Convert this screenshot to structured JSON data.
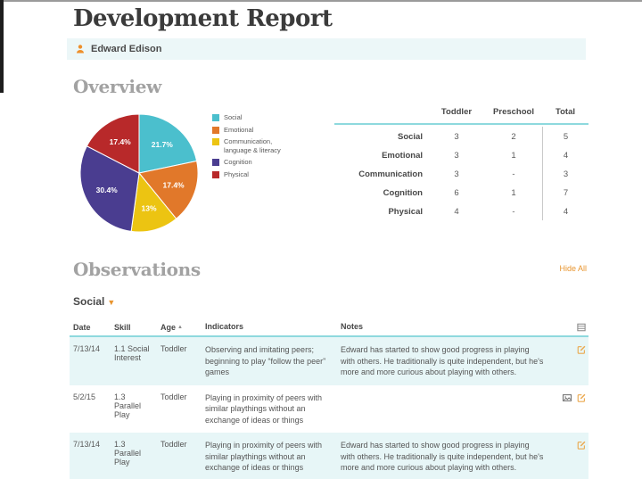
{
  "page": {
    "title": "Development Report"
  },
  "student": {
    "name": "Edward Edison"
  },
  "chart_data": {
    "type": "pie",
    "categories": [
      "Social",
      "Emotional",
      "Communication, language & literacy",
      "Cognition",
      "Physical"
    ],
    "values": [
      21.7,
      17.4,
      13,
      30.4,
      17.4
    ],
    "labels": [
      "21.7%",
      "17.4%",
      "13%",
      "30.4%",
      "17.4%"
    ],
    "colors": [
      "#4bbfcd",
      "#e1782a",
      "#ecc412",
      "#4a3d90",
      "#b8292a"
    ],
    "title": "",
    "legend_position": "right"
  },
  "overview": {
    "heading": "Overview",
    "table": {
      "col_toddler": "Toddler",
      "col_preschool": "Preschool",
      "col_total": "Total",
      "rows": [
        {
          "label": "Social",
          "toddler": "3",
          "preschool": "2",
          "total": "5"
        },
        {
          "label": "Emotional",
          "toddler": "3",
          "preschool": "1",
          "total": "4"
        },
        {
          "label": "Communication",
          "toddler": "3",
          "preschool": "-",
          "total": "3"
        },
        {
          "label": "Cognition",
          "toddler": "6",
          "preschool": "1",
          "total": "7"
        },
        {
          "label": "Physical",
          "toddler": "4",
          "preschool": "-",
          "total": "4"
        }
      ]
    }
  },
  "observations": {
    "heading": "Observations",
    "hide_all": "Hide All",
    "group": "Social",
    "headers": {
      "date": "Date",
      "skill": "Skill",
      "age": "Age",
      "indicators": "Indicators",
      "notes": "Notes"
    },
    "rows": [
      {
        "date": "7/13/14",
        "skill": "1.1 Social Interest",
        "age": "Toddler",
        "indicators": "Observing and imitating peers; beginning to play “follow the peer” games",
        "notes": "Edward has started to show good progress in playing with others. He traditionally is quite independent, but he's more and more curious about playing with others."
      },
      {
        "date": "5/2/15",
        "skill": "1.3 Parallel Play",
        "age": "Toddler",
        "indicators": "Playing in proximity of peers with similar playthings without an exchange of ideas or things",
        "notes": ""
      },
      {
        "date": "7/13/14",
        "skill": "1.3 Parallel Play",
        "age": "Toddler",
        "indicators": "Playing in proximity of peers with similar playthings without an exchange of ideas or things",
        "notes": "Edward has started to show good progress in playing with others. He traditionally is quite independent, but he's more and more curious about playing with others."
      }
    ]
  },
  "colors": {
    "accent_orange": "#e8952f",
    "teal_rule": "#8ed9de",
    "row_highlight": "#e7f6f7",
    "heading_gray": "#a2a2a2"
  }
}
